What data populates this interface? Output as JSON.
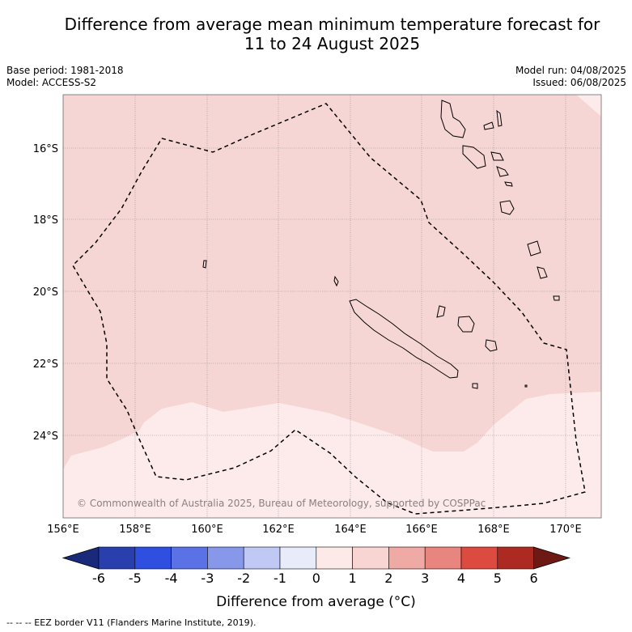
{
  "title_line1": "Difference from average mean minimum temperature forecast for",
  "title_line2": "11 to 24 August 2025",
  "meta_left": [
    "Base period: 1981-2018",
    "Model: ACCESS-S2"
  ],
  "meta_right": [
    "Model run: 04/08/2025",
    "Issued: 06/08/2025"
  ],
  "copyright": "© Commonwealth of Australia 2025, Bureau of Meteorology, supported by COSPPac",
  "lat_ticks": [
    "16°S",
    "18°S",
    "20°S",
    "22°S",
    "24°S"
  ],
  "lon_ticks": [
    "156°E",
    "158°E",
    "160°E",
    "162°E",
    "164°E",
    "166°E",
    "168°E",
    "170°E"
  ],
  "colorbar": {
    "ticks": [
      "-6",
      "-5",
      "-4",
      "-3",
      "-2",
      "-1",
      "0",
      "1",
      "2",
      "3",
      "4",
      "5",
      "6"
    ],
    "colors": [
      "#1a2a7a",
      "#2a3fae",
      "#2f4fe0",
      "#5a72e6",
      "#8797ea",
      "#c0c8f4",
      "#e8ecfa",
      "#fdeae8",
      "#f8d4d2",
      "#f0aaa6",
      "#e8857e",
      "#dc4a40",
      "#ad2a22",
      "#6e1a14"
    ],
    "label": "Difference from average (°C)"
  },
  "footnote": "--  --  -- EEZ border V11 (Flanders Marine Institute, 2019).",
  "field": {
    "upper_color": "#f6d6d4",
    "lower_color": "#fcebea"
  }
}
